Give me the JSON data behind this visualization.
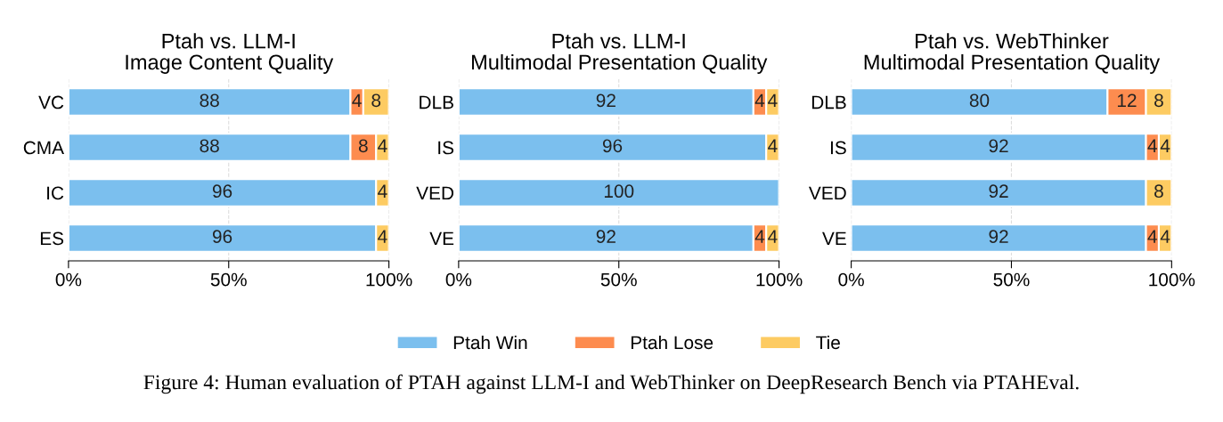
{
  "chart_data": [
    {
      "type": "bar",
      "orientation": "horizontal",
      "stacked": true,
      "title": "Ptah vs. LLM-I\nImage Content Quality",
      "categories": [
        "VC",
        "CMA",
        "IC",
        "ES"
      ],
      "series": [
        {
          "color": "#7bbfee",
          "values": [
            88,
            88,
            96,
            96
          ]
        },
        {
          "color": "#fd8c4f",
          "values": [
            4,
            8,
            null,
            null
          ]
        },
        {
          "color": "#fdcb62",
          "values": [
            8,
            4,
            4,
            4
          ]
        }
      ],
      "xlim": [
        0,
        100
      ],
      "xticks": [
        {
          "value": 0,
          "label": "0%"
        },
        {
          "value": 50,
          "label": "50%"
        },
        {
          "value": 100,
          "label": "100%"
        }
      ],
      "grid": "x",
      "data_labels": true,
      "annotations": [
        "Figure 4: Human evaluation of PTAH against LLM-I and WebThinker on DeepResearch Bench via PTAHEval."
      ]
    },
    {
      "type": "bar",
      "orientation": "horizontal",
      "stacked": true,
      "title": "Ptah vs. LLM-I\nMultimodal Presentation Quality",
      "categories": [
        "DLB",
        "IS",
        "VED",
        "VE"
      ],
      "series": [
        {
          "name": "Ptah Win",
          "color": "#7bbfee",
          "values": [
            92,
            96,
            100,
            92
          ]
        },
        {
          "name": "Ptah Lose",
          "color": "#fd8c4f",
          "values": [
            4,
            null,
            null,
            4
          ]
        },
        {
          "name": "Tie",
          "color": "#fdcb62",
          "values": [
            4,
            4,
            null,
            4
          ]
        }
      ],
      "xlim": [
        0,
        100
      ],
      "xticks": [
        {
          "value": 0,
          "label": "0%"
        },
        {
          "value": 50,
          "label": "50%"
        },
        {
          "value": 100,
          "label": "100%"
        }
      ],
      "grid": "x",
      "data_labels": true,
      "legend": "bottom"
    },
    {
      "type": "bar",
      "orientation": "horizontal",
      "stacked": true,
      "title": "Ptah vs. WebThinker\nMultimodal Presentation Quality",
      "categories": [
        "DLB",
        "IS",
        "VED",
        "VE"
      ],
      "series": [
        {
          "color": "#7bbfee",
          "values": [
            80,
            92,
            92,
            92
          ]
        },
        {
          "color": "#fd8c4f",
          "values": [
            12,
            4,
            null,
            4
          ]
        },
        {
          "color": "#fdcb62",
          "values": [
            8,
            4,
            8,
            4
          ]
        }
      ],
      "xlim": [
        0,
        100
      ],
      "xticks": [
        {
          "value": 0,
          "label": "0%"
        },
        {
          "value": 50,
          "label": "50%"
        },
        {
          "value": 100,
          "label": "100%"
        }
      ],
      "grid": "x",
      "data_labels": true
    }
  ]
}
